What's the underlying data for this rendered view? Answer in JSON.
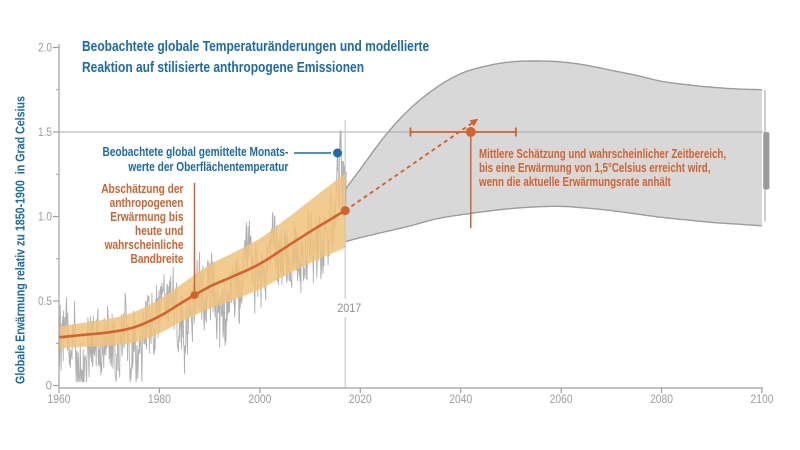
{
  "title": "Beobachtete globale Temperaturänderungen und modellierte\nReaktion auf stilisierte anthropogene Emissionen",
  "y_axis_label": "Globale Erwärmung relativ zu 1850-1900  in Grad Celsius",
  "annotations": {
    "observed": "Beobachtete global gemittelte Monats-\nwerte der Oberflächentemperatur",
    "anthropogenic": "Abschätzung der\nanthropogenen\nErwärmung bis\nheute und\nwahrscheinliche\nBandbreite",
    "estimate": "Mittlere Schätzung und wahrscheinlicher Zeitbereich,\nbis eine Erwärmung von 1,5°Celsius erreicht wird,\nwenn die aktuelle Erwärmungsrate anhält"
  },
  "colors": {
    "blue": "#1a6ba8",
    "orange": "#d2622e",
    "band_fill": "rgba(238,194,125,0.85)",
    "plume_fill": "#d8d8d8",
    "plume_edge": "#9c9c9c",
    "observed_line": "#b0b0b0",
    "axis": "#9f9f9f",
    "tick_text": "#9b9b9b",
    "marker_line": "#c2c2c2",
    "gridline": "#a8a8a8",
    "range_bar": "#9a9a9a",
    "range_line": "#b4b4b4"
  },
  "chart_data": {
    "type": "line",
    "xlim": [
      1960,
      2100
    ],
    "ylim": [
      0,
      2.0
    ],
    "x_ticks": [
      "1960",
      "1980",
      "2000",
      "2020",
      "2040",
      "2060",
      "2080",
      "2100"
    ],
    "y_ticks": [
      "0",
      "0.5",
      "1.0",
      "1.5",
      "2.0"
    ],
    "y_tick_values": [
      0,
      0.5,
      1.0,
      1.5,
      2.0
    ],
    "y_minor_tick_values": [
      0.25,
      0.75,
      1.25,
      1.75
    ],
    "gridline_value": 1.5,
    "marker": {
      "year": 2017,
      "label": "2017"
    },
    "observed_monthly": {
      "annual_means": [
        [
          1960,
          0.3
        ],
        [
          1961,
          0.31
        ],
        [
          1962,
          0.29
        ],
        [
          1963,
          0.32
        ],
        [
          1964,
          0.12
        ],
        [
          1965,
          0.16
        ],
        [
          1966,
          0.24
        ],
        [
          1967,
          0.26
        ],
        [
          1968,
          0.22
        ],
        [
          1969,
          0.32
        ],
        [
          1970,
          0.31
        ],
        [
          1971,
          0.21
        ],
        [
          1972,
          0.27
        ],
        [
          1973,
          0.42
        ],
        [
          1974,
          0.17
        ],
        [
          1975,
          0.26
        ],
        [
          1976,
          0.15
        ],
        [
          1977,
          0.4
        ],
        [
          1978,
          0.33
        ],
        [
          1979,
          0.42
        ],
        [
          1980,
          0.48
        ],
        [
          1981,
          0.52
        ],
        [
          1982,
          0.38
        ],
        [
          1983,
          0.52
        ],
        [
          1984,
          0.37
        ],
        [
          1985,
          0.36
        ],
        [
          1986,
          0.42
        ],
        [
          1987,
          0.52
        ],
        [
          1988,
          0.58
        ],
        [
          1989,
          0.48
        ],
        [
          1990,
          0.62
        ],
        [
          1991,
          0.58
        ],
        [
          1992,
          0.38
        ],
        [
          1993,
          0.42
        ],
        [
          1994,
          0.5
        ],
        [
          1995,
          0.62
        ],
        [
          1996,
          0.56
        ],
        [
          1997,
          0.72
        ],
        [
          1998,
          0.82
        ],
        [
          1999,
          0.62
        ],
        [
          2000,
          0.63
        ],
        [
          2001,
          0.72
        ],
        [
          2002,
          0.78
        ],
        [
          2003,
          0.8
        ],
        [
          2004,
          0.74
        ],
        [
          2005,
          0.83
        ],
        [
          2006,
          0.78
        ],
        [
          2007,
          0.83
        ],
        [
          2008,
          0.7
        ],
        [
          2009,
          0.8
        ],
        [
          2010,
          0.88
        ],
        [
          2011,
          0.78
        ],
        [
          2012,
          0.82
        ],
        [
          2013,
          0.85
        ],
        [
          2014,
          0.92
        ],
        [
          2015,
          1.08
        ],
        [
          2016,
          1.3
        ],
        [
          2017,
          1.12
        ]
      ],
      "end_year": 2017.3,
      "noise_amp": 0.2,
      "noise_phi": 0.22,
      "value_floor": 0.02,
      "seed": 12,
      "extreme_months": [
        [
          1961.5,
          0.52
        ],
        [
          1963.1,
          0.55
        ],
        [
          1964.4,
          0.03
        ],
        [
          1966.0,
          0.05
        ],
        [
          1968.5,
          0.08
        ],
        [
          1969.7,
          0.52
        ],
        [
          1971.9,
          0.05
        ],
        [
          1973.2,
          0.62
        ],
        [
          1974.7,
          0.04
        ],
        [
          1976.5,
          0.02
        ],
        [
          1977.8,
          0.56
        ],
        [
          1980.9,
          0.68
        ],
        [
          1982.0,
          0.62
        ],
        [
          1983.3,
          0.62
        ],
        [
          1985.0,
          0.07
        ],
        [
          1988.2,
          0.7
        ],
        [
          1990.3,
          0.74
        ],
        [
          1992.7,
          0.2
        ],
        [
          1995.3,
          0.76
        ],
        [
          1998.2,
          0.98
        ],
        [
          2001.9,
          0.88
        ],
        [
          2005.2,
          0.96
        ],
        [
          2007.1,
          0.95
        ],
        [
          2010.3,
          0.98
        ],
        [
          2013.2,
          0.95
        ],
        [
          2014.9,
          1.1
        ],
        [
          2016.15,
          1.56
        ],
        [
          2017.2,
          1.25
        ]
      ]
    },
    "anthropogenic_warming": {
      "center_and_halfwidth": [
        [
          1960,
          0.285,
          0.065
        ],
        [
          1965,
          0.3,
          0.072
        ],
        [
          1970,
          0.315,
          0.08
        ],
        [
          1975,
          0.345,
          0.09
        ],
        [
          1980,
          0.41,
          0.1
        ],
        [
          1985,
          0.5,
          0.112
        ],
        [
          1990,
          0.585,
          0.13
        ],
        [
          1995,
          0.65,
          0.14
        ],
        [
          2000,
          0.72,
          0.15
        ],
        [
          2005,
          0.815,
          0.165
        ],
        [
          2010,
          0.91,
          0.185
        ],
        [
          2015,
          1.0,
          0.21
        ],
        [
          2017,
          1.035,
          0.22
        ]
      ],
      "highlight_point": [
        1987,
        0.535
      ],
      "end_point": [
        2017,
        1.035
      ]
    },
    "projection_band": {
      "top": [
        [
          2017,
          1.16
        ],
        [
          2020,
          1.28
        ],
        [
          2025,
          1.48
        ],
        [
          2030,
          1.64
        ],
        [
          2035,
          1.76
        ],
        [
          2040,
          1.845
        ],
        [
          2045,
          1.89
        ],
        [
          2050,
          1.915
        ],
        [
          2055,
          1.92
        ],
        [
          2060,
          1.915
        ],
        [
          2065,
          1.895
        ],
        [
          2070,
          1.865
        ],
        [
          2075,
          1.835
        ],
        [
          2080,
          1.8
        ],
        [
          2085,
          1.78
        ],
        [
          2090,
          1.765
        ],
        [
          2095,
          1.755
        ],
        [
          2100,
          1.75
        ]
      ],
      "bottom": [
        [
          2017,
          0.85
        ],
        [
          2020,
          0.875
        ],
        [
          2025,
          0.91
        ],
        [
          2030,
          0.945
        ],
        [
          2035,
          0.985
        ],
        [
          2040,
          1.01
        ],
        [
          2045,
          1.03
        ],
        [
          2050,
          1.047
        ],
        [
          2055,
          1.057
        ],
        [
          2060,
          1.06
        ],
        [
          2065,
          1.05
        ],
        [
          2070,
          1.035
        ],
        [
          2075,
          1.015
        ],
        [
          2080,
          0.995
        ],
        [
          2085,
          0.98
        ],
        [
          2090,
          0.965
        ],
        [
          2095,
          0.955
        ],
        [
          2100,
          0.945
        ]
      ]
    },
    "extrapolation_arrow": {
      "from": [
        2017,
        1.035
      ],
      "to": [
        2043.5,
        1.578
      ]
    },
    "crossing_estimate": {
      "year": 2042,
      "value": 1.5,
      "range_years": [
        2030,
        2051
      ]
    },
    "range_at_2100": {
      "full": [
        0.97,
        1.75
      ],
      "likely": [
        1.16,
        1.5
      ]
    }
  }
}
